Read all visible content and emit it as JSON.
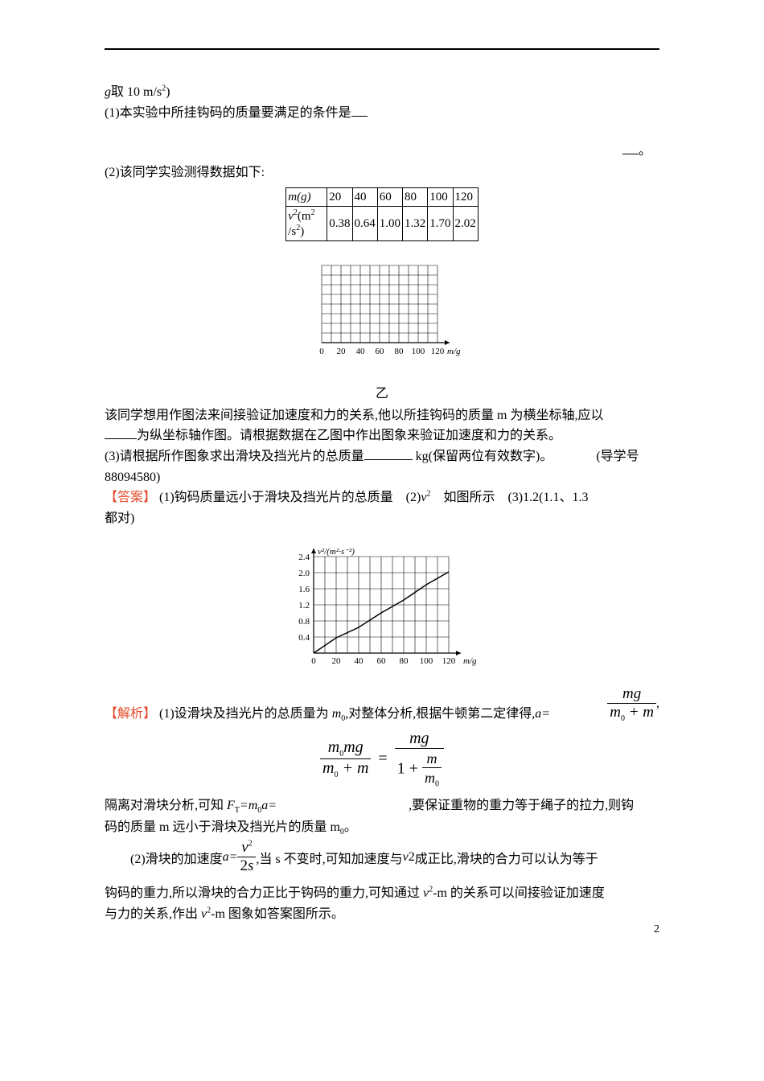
{
  "intro": {
    "line1_prefix": "g",
    "line1_rest": "取 10 m/s",
    "line1_sup": "2",
    "line1_close": ")",
    "line2": "(1)本实验中所挂钩码的质量要满足的条件是",
    "line3": "(2)该同学实验测得数据如下:"
  },
  "right_period": "。",
  "table": {
    "row1_head": "m(g)",
    "row1": [
      "20",
      "40",
      "60",
      "80",
      "100",
      "120"
    ],
    "row2_head_a": "v",
    "row2_head_sup": "2",
    "row2_head_b": "(m",
    "row2_head_c": "/s",
    "row2_head_d": ")",
    "row2": [
      "0.38",
      "0.64",
      "1.00",
      "1.32",
      "1.70",
      "2.02"
    ],
    "border_color": "#000000",
    "fontsize": 15
  },
  "grid_blank": {
    "cols": 12,
    "rows": 8,
    "xlabels": [
      "0",
      "20",
      "40",
      "60",
      "80",
      "100",
      "120"
    ],
    "xaxis_label": "m/g",
    "line_color": "#000000",
    "bg": "#ffffff"
  },
  "caption_blank": "乙",
  "body2": {
    "l1": "该同学想用作图法来间接验证加速度和力的关系,他以所挂钩码的质量 m 为横坐标轴,应以",
    "l2_a": "为纵坐标轴作图。请根据数据在乙图中作出图象来验证加速度和力的关系。",
    "l3_a": "(3)请根据所作图象求出滑块及挡光片的总质量",
    "l3_b": " kg(保留两位有效数字)。",
    "l3_c": "(导学号",
    "l4": "88094580)"
  },
  "answer": {
    "label": "【答案】",
    "text_a": " (1)钩码质量远小于滑块及挡光片的总质量　(2)",
    "v2": "v",
    "text_b": "　如图所示　(3)1.2(1.1、1.3",
    "text_c": "都对)"
  },
  "answer_graph": {
    "ylabel": "v²/(m²·s⁻²)",
    "ylabels": [
      "0.4",
      "0.8",
      "1.2",
      "1.6",
      "2.0",
      "2.4"
    ],
    "xlabels": [
      "0",
      "20",
      "40",
      "60",
      "80",
      "100",
      "120"
    ],
    "xaxis_label": "m/g",
    "line_color": "#000000",
    "data_line_color": "#000000",
    "points_x": [
      20,
      40,
      60,
      80,
      100,
      120
    ],
    "points_y": [
      0.38,
      0.64,
      1.0,
      1.32,
      1.7,
      2.02
    ]
  },
  "analysis": {
    "label": "【解析】",
    "p1_a": " (1)设滑块及挡光片的总质量为 ",
    "p1_m0": "m",
    "p1_sub0": "0",
    "p1_b": ",对整体分析,根据牛顿第二定律得,",
    "p1_c": "a=",
    "frac1_num": "mg",
    "frac1_den_a": "m",
    "frac1_den_sub": "0",
    "frac1_den_b": " + m",
    "p1_d": ",",
    "p2_a": "隔离对滑块分析,可知 ",
    "p2_b": "F",
    "p2_bsub": "T",
    "p2_c": "=m",
    "p2_csub": "0",
    "p2_d": "a=",
    "frac2_num_a": "m",
    "frac2_num_sub": "0",
    "frac2_num_b": "mg",
    "frac2_den_a": "m",
    "frac2_den_sub": "0",
    "frac2_den_b": " + m",
    "eq": "=",
    "frac3_num": "mg",
    "frac3_den_top": "1 + ",
    "frac3_inner_num": "m",
    "frac3_inner_den_a": "m",
    "frac3_inner_den_sub": "0",
    "p2_e": ",要保证重物的重力等于绳子的拉力,则钩",
    "p3": "码的质量 m 远小于滑块及挡光片的质量 m",
    "p3_sub": "0",
    "p3_end": "。",
    "p4_a": "　　(2)滑块的加速度 ",
    "p4_b": "a=",
    "frac4_num_a": "v",
    "frac4_num_sup": "2",
    "frac4_den": "2s",
    "p4_c": ",当 s 不变时,可知加速度与 ",
    "p4_d": "v",
    "p4_e": "成正比,滑块的合力可以认为等于",
    "p5_a": "钩码的重力,所以滑块的合力正比于钩码的重力,可知通过 ",
    "p5_b": "v",
    "p5_c": "-m 的关系可以间接验证加速度",
    "p6": "与力的关系,作出 ",
    "p6_b": "v",
    "p6_c": "-m 图象如答案图所示。"
  },
  "pagenum": "2",
  "colors": {
    "text": "#000000",
    "answer_label": "#e24a2a",
    "rule": "#000000",
    "bg": "#ffffff"
  }
}
